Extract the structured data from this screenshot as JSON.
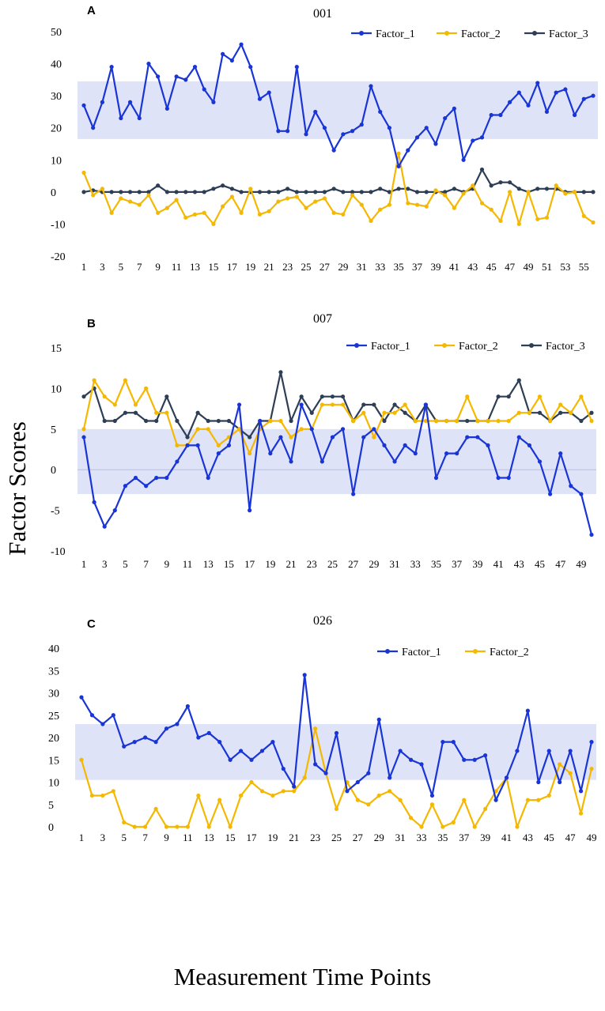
{
  "figure": {
    "y_axis_label": "Factor Scores",
    "x_axis_label": "Measurement Time Points"
  },
  "colors": {
    "Factor_1": "#1a35d6",
    "Factor_2": "#f5b800",
    "Factor_3": "#2d3e55",
    "band": "#dfe3f8"
  },
  "chart_data": [
    {
      "type": "line",
      "panel": "A",
      "title": "001",
      "ylim": [
        -20,
        50
      ],
      "yticks": [
        -20,
        -10,
        0,
        10,
        20,
        30,
        40,
        50
      ],
      "x": [
        1,
        2,
        3,
        4,
        5,
        6,
        7,
        8,
        9,
        10,
        11,
        12,
        13,
        14,
        15,
        16,
        17,
        18,
        19,
        20,
        21,
        22,
        23,
        24,
        25,
        26,
        27,
        28,
        29,
        30,
        31,
        32,
        33,
        34,
        35,
        36,
        37,
        38,
        39,
        40,
        41,
        42,
        43,
        44,
        45,
        46,
        47,
        48,
        49,
        50,
        51,
        52,
        53,
        54,
        55,
        56
      ],
      "xticks": [
        1,
        3,
        5,
        7,
        9,
        11,
        13,
        15,
        17,
        19,
        21,
        23,
        25,
        27,
        29,
        31,
        33,
        35,
        37,
        39,
        41,
        43,
        45,
        47,
        49,
        51,
        53,
        55
      ],
      "band": [
        16.5,
        34.5
      ],
      "series": [
        {
          "name": "Factor_1",
          "values": [
            27,
            20,
            28,
            39,
            23,
            28,
            23,
            40,
            36,
            26,
            36,
            35,
            39,
            32,
            28,
            43,
            41,
            46,
            39,
            29,
            31,
            19,
            19,
            39,
            18,
            25,
            20,
            13,
            18,
            19,
            21,
            33,
            25,
            20,
            8,
            13,
            17,
            20,
            15,
            23,
            26,
            10,
            16,
            17,
            24,
            24,
            28,
            31,
            27,
            34,
            25,
            31,
            32,
            24,
            29,
            30
          ]
        },
        {
          "name": "Factor_2",
          "values": [
            6,
            -1,
            1,
            -6.5,
            -2,
            -3,
            -4,
            -1,
            -6.5,
            -5,
            -2.5,
            -8,
            -7,
            -6.5,
            -10,
            -4.5,
            -1.5,
            -6.5,
            1,
            -7,
            -6,
            -3,
            -2,
            -1.5,
            -5,
            -3,
            -2,
            -6.5,
            -7,
            -1,
            -4,
            -9,
            -5.5,
            -4,
            12,
            -3.5,
            -4,
            -4.5,
            0.5,
            -1,
            -5,
            -0.5,
            2,
            -3.5,
            -5.5,
            -9,
            0,
            -10,
            0,
            -8.5,
            -8,
            2,
            -0.5,
            0,
            -7.5,
            -9.5
          ]
        },
        {
          "name": "Factor_3",
          "values": [
            0,
            0.5,
            0,
            0,
            0,
            0,
            0,
            0,
            2,
            0,
            0,
            0,
            0,
            0,
            1,
            2,
            1,
            0,
            0,
            0,
            0,
            0,
            1,
            0,
            0,
            0,
            0,
            1,
            0,
            0,
            0,
            0,
            1,
            0,
            1,
            1,
            0,
            0,
            0,
            0,
            1,
            0,
            1,
            7,
            2,
            3,
            3,
            1,
            0,
            1,
            1,
            1,
            0,
            0,
            0,
            0
          ]
        }
      ],
      "legend": [
        "Factor_1",
        "Factor_2",
        "Factor_3"
      ]
    },
    {
      "type": "line",
      "panel": "B",
      "title": "007",
      "ylim": [
        -10,
        15
      ],
      "yticks": [
        -10,
        -5,
        0,
        5,
        10,
        15
      ],
      "x": [
        1,
        2,
        3,
        4,
        5,
        6,
        7,
        8,
        9,
        10,
        11,
        12,
        13,
        14,
        15,
        16,
        17,
        18,
        19,
        20,
        21,
        22,
        23,
        24,
        25,
        26,
        27,
        28,
        29,
        30,
        31,
        32,
        33,
        34,
        35,
        36,
        37,
        38,
        39,
        40,
        41,
        42,
        43,
        44,
        45,
        46,
        47,
        48,
        49,
        50
      ],
      "xticks": [
        1,
        3,
        5,
        7,
        9,
        11,
        13,
        15,
        17,
        19,
        21,
        23,
        25,
        27,
        29,
        31,
        33,
        35,
        37,
        39,
        41,
        43,
        45,
        47,
        49
      ],
      "band": [
        -3,
        5
      ],
      "series": [
        {
          "name": "Factor_1",
          "values": [
            4,
            -4,
            -7,
            -5,
            -2,
            -1,
            -2,
            -1,
            -1,
            1,
            3,
            3,
            -1,
            2,
            3,
            8,
            -5,
            6,
            2,
            4,
            1,
            8,
            5,
            1,
            4,
            5,
            -3,
            4,
            5,
            3,
            1,
            3,
            2,
            8,
            -1,
            2,
            2,
            4,
            4,
            3,
            -1,
            -1,
            4,
            3,
            1,
            -3,
            2,
            -2,
            -3,
            -8
          ]
        },
        {
          "name": "Factor_2",
          "values": [
            5,
            11,
            9,
            8,
            11,
            8,
            10,
            7,
            7,
            3,
            3,
            5,
            5,
            3,
            4,
            5,
            2,
            5,
            6,
            6,
            4,
            5,
            5,
            8,
            8,
            8,
            6,
            7,
            4,
            7,
            7,
            8,
            6,
            6,
            6,
            6,
            6,
            9,
            6,
            6,
            6,
            6,
            7,
            7,
            9,
            6,
            8,
            7,
            9,
            6
          ]
        },
        {
          "name": "Factor_3",
          "values": [
            9,
            10,
            6,
            6,
            7,
            7,
            6,
            6,
            9,
            6,
            4,
            7,
            6,
            6,
            6,
            5,
            4,
            6,
            6,
            12,
            6,
            9,
            7,
            9,
            9,
            9,
            6,
            8,
            8,
            6,
            8,
            7,
            6,
            8,
            6,
            6,
            6,
            6,
            6,
            6,
            9,
            9,
            11,
            7,
            7,
            6,
            7,
            7,
            6,
            7
          ]
        }
      ],
      "legend": [
        "Factor_1",
        "Factor_2",
        "Factor_3"
      ]
    },
    {
      "type": "line",
      "panel": "C",
      "title": "026",
      "ylim": [
        0,
        40
      ],
      "yticks": [
        0,
        5,
        10,
        15,
        20,
        25,
        30,
        35,
        40
      ],
      "x": [
        1,
        2,
        3,
        4,
        5,
        6,
        7,
        8,
        9,
        10,
        11,
        12,
        13,
        14,
        15,
        16,
        17,
        18,
        19,
        20,
        21,
        22,
        23,
        24,
        25,
        26,
        27,
        28,
        29,
        30,
        31,
        32,
        33,
        34,
        35,
        36,
        37,
        38,
        39,
        40,
        41,
        42,
        43,
        44,
        45,
        46,
        47,
        48,
        49
      ],
      "xticks": [
        1,
        3,
        5,
        7,
        9,
        11,
        13,
        15,
        17,
        19,
        21,
        23,
        25,
        27,
        29,
        31,
        33,
        35,
        37,
        39,
        41,
        43,
        45,
        47,
        49
      ],
      "band": [
        10.5,
        23
      ],
      "series": [
        {
          "name": "Factor_1",
          "values": [
            29,
            25,
            23,
            25,
            18,
            19,
            20,
            19,
            22,
            23,
            27,
            20,
            21,
            19,
            15,
            17,
            15,
            17,
            19,
            13,
            9,
            34,
            14,
            12,
            21,
            8,
            10,
            12,
            24,
            11,
            17,
            15,
            14,
            7,
            19,
            19,
            15,
            15,
            16,
            6,
            11,
            17,
            26,
            10,
            17,
            10,
            17,
            8,
            19
          ]
        },
        {
          "name": "Factor_2",
          "values": [
            15,
            7,
            7,
            8,
            1,
            0,
            0,
            4,
            0,
            0,
            0,
            7,
            0,
            6,
            0,
            7,
            10,
            8,
            7,
            8,
            8,
            11,
            22,
            12,
            4,
            10,
            6,
            5,
            7,
            8,
            6,
            2,
            0,
            5,
            0,
            1,
            6,
            0,
            4,
            8,
            11,
            0,
            6,
            6,
            7,
            14,
            12,
            3,
            13
          ]
        }
      ],
      "legend": [
        "Factor_1",
        "Factor_2"
      ]
    }
  ]
}
